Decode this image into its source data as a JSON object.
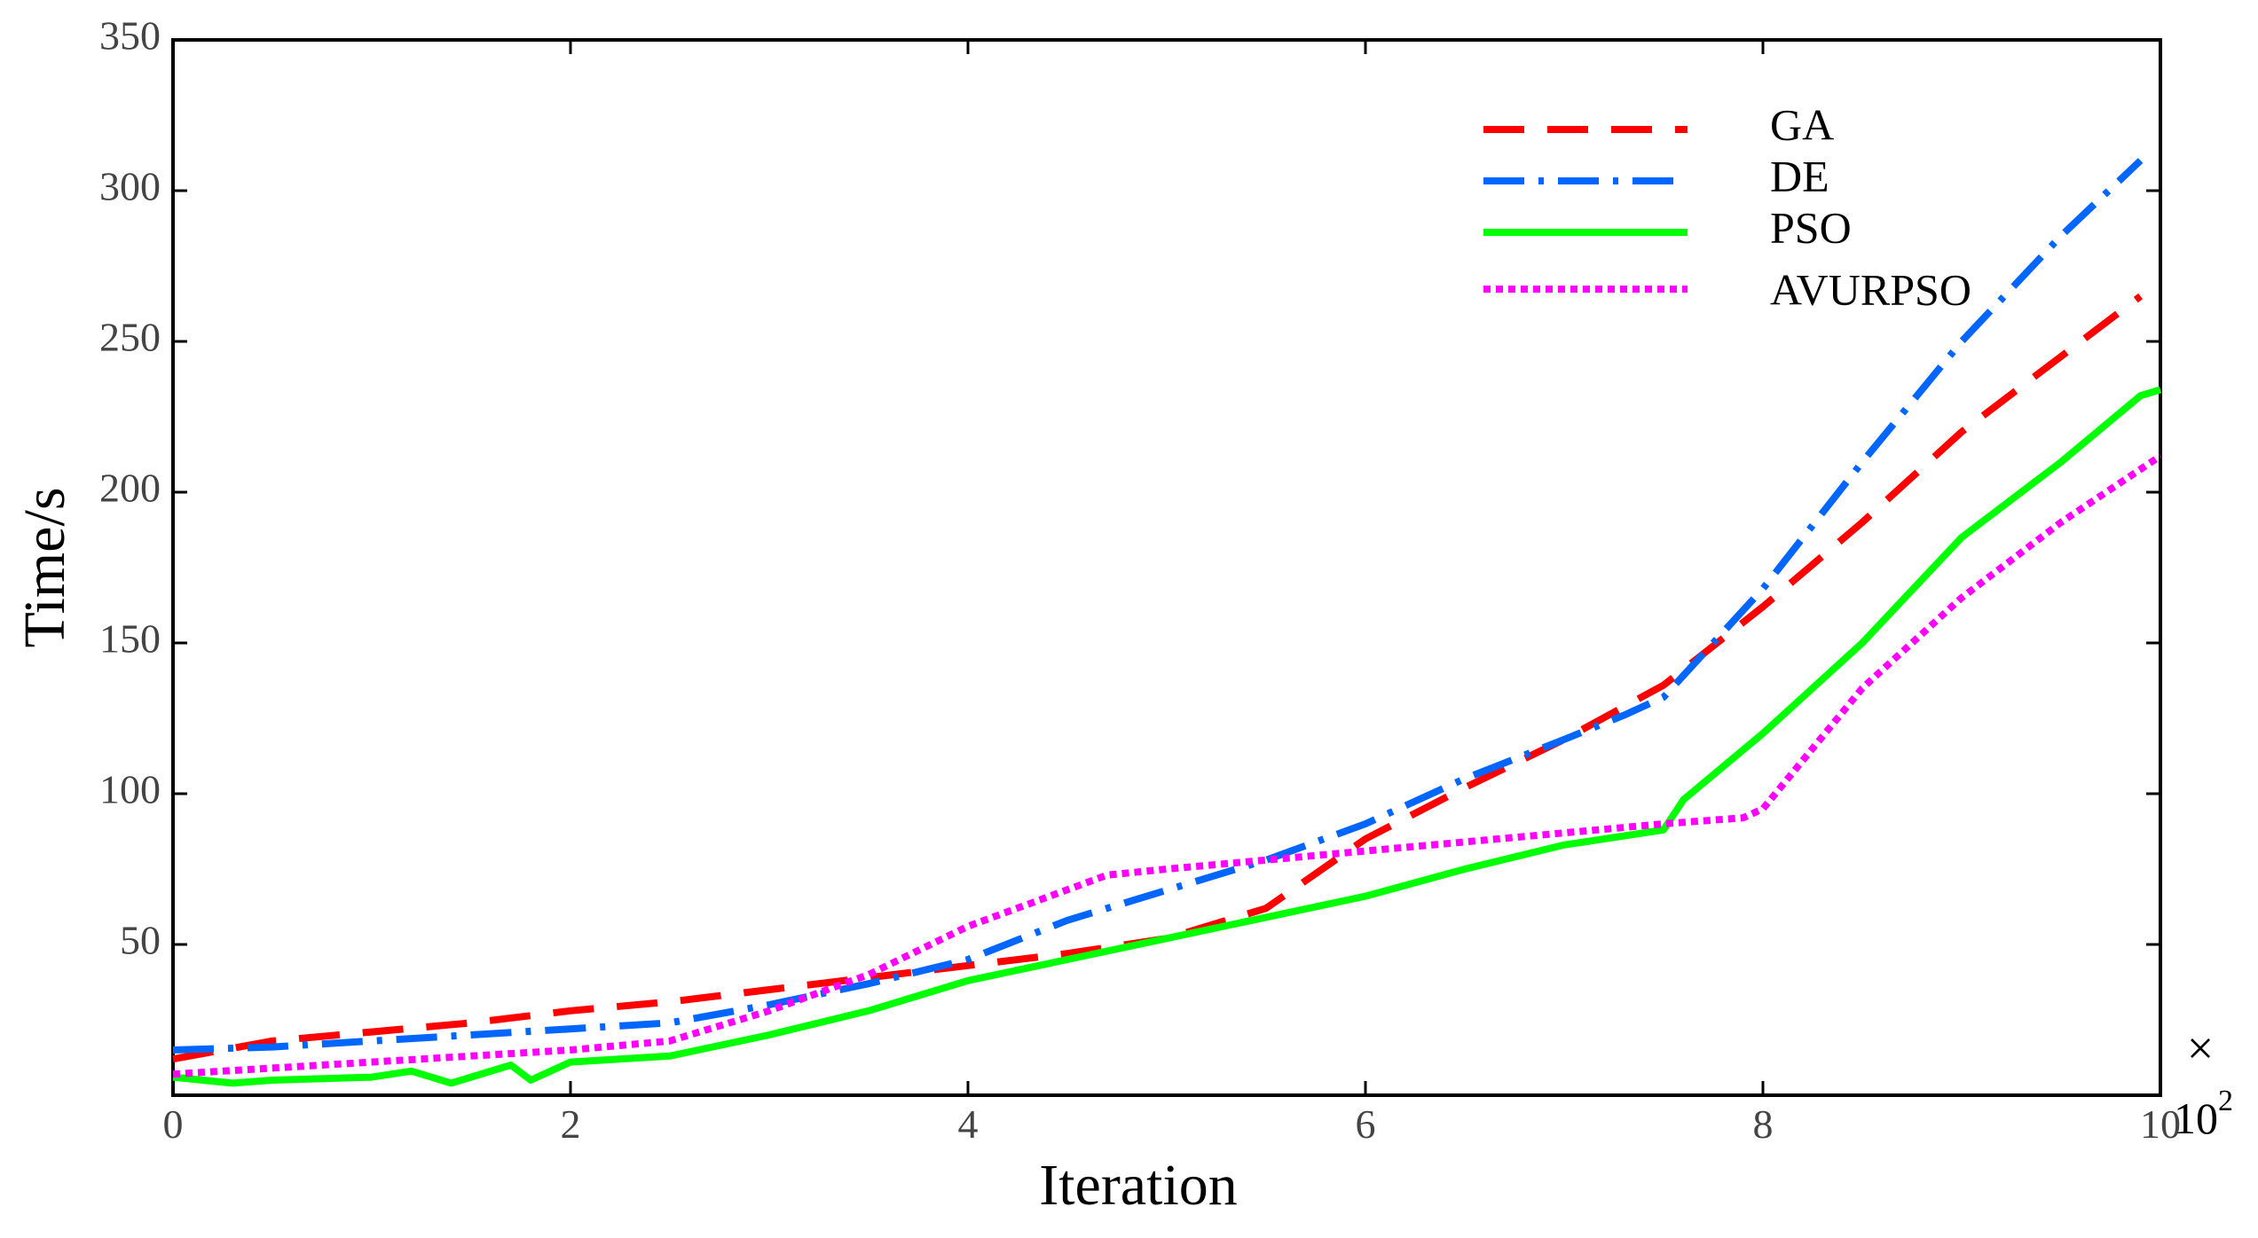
{
  "chart_data": {
    "type": "line",
    "title": "",
    "xlabel": "Iteration",
    "ylabel": "Time/s",
    "x_multiplier": {
      "symbol": "×",
      "base": "10",
      "exponent": "2"
    },
    "xlim": [
      0,
      10
    ],
    "ylim": [
      0,
      350
    ],
    "x_ticks": [
      "0",
      "2",
      "4",
      "6",
      "8",
      "10"
    ],
    "y_ticks": [
      "50",
      "100",
      "150",
      "200",
      "250",
      "300",
      "350"
    ],
    "grid": false,
    "legend_position": "top-right",
    "series": [
      {
        "name": "GA",
        "color": "#ff0000",
        "dash": "long-dash",
        "x": [
          0,
          0.5,
          1,
          1.5,
          2,
          2.5,
          3,
          3.5,
          4,
          4.5,
          5,
          5.5,
          6,
          6.5,
          7,
          7.5,
          8,
          8.5,
          9,
          9.5,
          9.9
        ],
        "y": [
          12,
          18,
          21,
          24,
          28,
          31,
          35,
          39,
          43,
          47,
          52,
          62,
          85,
          102,
          118,
          136,
          162,
          190,
          220,
          245,
          265
        ]
      },
      {
        "name": "DE",
        "color": "#0066ff",
        "dash": "dash-dot",
        "x": [
          0,
          0.5,
          1,
          1.5,
          2,
          2.5,
          3,
          3.5,
          4,
          4.5,
          5,
          5.5,
          6,
          6.5,
          7,
          7.3,
          7.5,
          8,
          8.5,
          9,
          9.5,
          9.9
        ],
        "y": [
          15,
          16,
          18,
          20,
          22,
          24,
          30,
          37,
          45,
          58,
          68,
          78,
          90,
          105,
          118,
          126,
          132,
          168,
          210,
          250,
          285,
          310
        ]
      },
      {
        "name": "PSO",
        "color": "#00ff00",
        "dash": "solid",
        "x": [
          0,
          0.3,
          0.5,
          1,
          1.2,
          1.4,
          1.7,
          1.8,
          2,
          2.5,
          3,
          3.5,
          4,
          4.5,
          5,
          5.5,
          6,
          6.5,
          7,
          7.5,
          7.6,
          8,
          8.5,
          9,
          9.5,
          9.9,
          10
        ],
        "y": [
          6,
          4,
          5,
          6,
          8,
          4,
          10,
          5,
          11,
          13,
          20,
          28,
          38,
          45,
          52,
          59,
          66,
          75,
          83,
          88,
          98,
          120,
          150,
          185,
          210,
          232,
          234
        ]
      },
      {
        "name": "AVURPSO",
        "color": "#ff00ff",
        "dash": "dotted",
        "x": [
          0,
          0.5,
          1,
          1.5,
          2,
          2.5,
          3,
          3.5,
          4,
          4.7,
          5,
          5.5,
          6,
          6.5,
          7,
          7.5,
          7.9,
          8,
          8.5,
          9,
          9.5,
          10
        ],
        "y": [
          7,
          9,
          11,
          13,
          15,
          18,
          28,
          40,
          56,
          73,
          75,
          78,
          81,
          84,
          87,
          90,
          92,
          95,
          135,
          165,
          190,
          212
        ]
      }
    ]
  }
}
